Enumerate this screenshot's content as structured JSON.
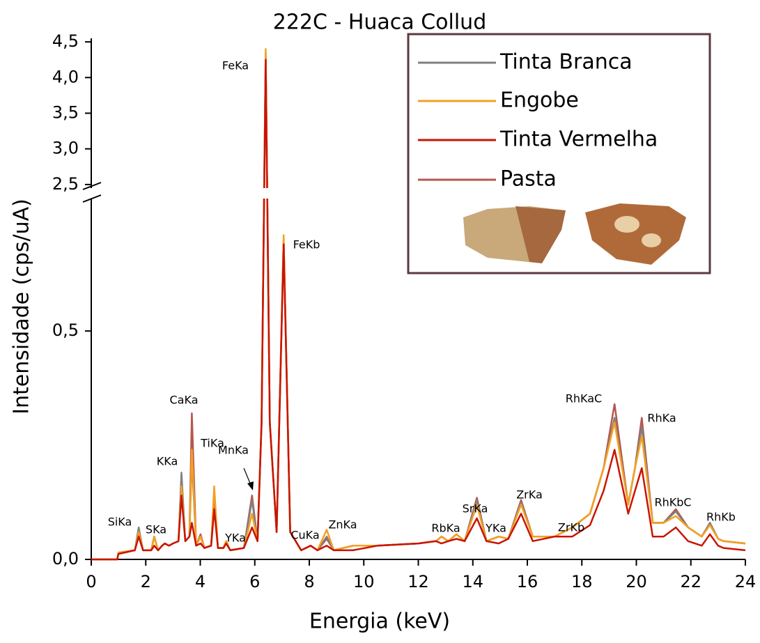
{
  "chart_data": {
    "type": "line",
    "title": "222C - Huaca Collud",
    "x_label": "Energia (keV)",
    "y_label": "Intensidade (cps/uA)",
    "xlim": [
      0,
      24
    ],
    "xticks": [
      0,
      2,
      4,
      6,
      8,
      10,
      12,
      14,
      16,
      18,
      20,
      22,
      24
    ],
    "ylim_segments": [
      [
        0,
        0.79
      ],
      [
        2.45,
        4.55
      ]
    ],
    "yticks": [
      {
        "value": 0,
        "label": "0,0"
      },
      {
        "value": 0.5,
        "label": "0,5"
      },
      {
        "value": 2.5,
        "label": "2,5"
      },
      {
        "value": 3.0,
        "label": "3,0"
      },
      {
        "value": 3.5,
        "label": "3,5"
      },
      {
        "value": 4.0,
        "label": "4,0"
      },
      {
        "value": 4.5,
        "label": "4,5"
      }
    ],
    "x": [
      0,
      0.95,
      1.0,
      1.6,
      1.74,
      1.9,
      2.2,
      2.31,
      2.45,
      2.6,
      2.7,
      2.85,
      3.0,
      3.2,
      3.31,
      3.45,
      3.6,
      3.69,
      3.85,
      4.01,
      4.15,
      4.4,
      4.51,
      4.65,
      4.85,
      4.95,
      5.1,
      5.6,
      5.9,
      6.1,
      6.25,
      6.4,
      6.55,
      6.8,
      7.06,
      7.3,
      7.7,
      8.05,
      8.3,
      8.64,
      8.9,
      9.6,
      10.5,
      12.0,
      12.65,
      12.85,
      13.1,
      13.4,
      13.7,
      14.15,
      14.5,
      14.95,
      15.3,
      15.77,
      16.2,
      17.0,
      17.65,
      18.3,
      18.8,
      19.2,
      19.7,
      19.95,
      20.2,
      20.6,
      21.0,
      21.45,
      21.9,
      22.4,
      22.7,
      23.0,
      23.2,
      24
    ],
    "series": [
      {
        "name": "Tinta Branca",
        "color": "#808080",
        "values": [
          0,
          0,
          0.015,
          0.02,
          0.07,
          0.02,
          0.02,
          0.05,
          0.02,
          0.03,
          0.035,
          0.03,
          0.035,
          0.04,
          0.19,
          0.04,
          0.05,
          0.22,
          0.03,
          0.05,
          0.025,
          0.03,
          0.14,
          0.025,
          0.025,
          0.04,
          0.02,
          0.025,
          0.13,
          0.04,
          0.3,
          4.35,
          0.3,
          0.06,
          0.7,
          0.06,
          0.02,
          0.03,
          0.02,
          0.05,
          0.02,
          0.03,
          0.03,
          0.035,
          0.04,
          0.05,
          0.04,
          0.055,
          0.04,
          0.13,
          0.04,
          0.05,
          0.045,
          0.125,
          0.05,
          0.05,
          0.07,
          0.1,
          0.2,
          0.31,
          0.12,
          0.2,
          0.29,
          0.08,
          0.08,
          0.105,
          0.07,
          0.05,
          0.08,
          0.045,
          0.04,
          0.035
        ]
      },
      {
        "name": "Engobe",
        "color": "#f5a020",
        "values": [
          0,
          0,
          0.015,
          0.02,
          0.06,
          0.02,
          0.02,
          0.05,
          0.02,
          0.03,
          0.035,
          0.03,
          0.035,
          0.04,
          0.16,
          0.04,
          0.05,
          0.24,
          0.03,
          0.05,
          0.025,
          0.03,
          0.16,
          0.025,
          0.025,
          0.04,
          0.02,
          0.025,
          0.1,
          0.04,
          0.3,
          4.4,
          0.3,
          0.06,
          0.71,
          0.06,
          0.02,
          0.03,
          0.02,
          0.065,
          0.02,
          0.03,
          0.03,
          0.035,
          0.04,
          0.05,
          0.04,
          0.055,
          0.04,
          0.12,
          0.04,
          0.05,
          0.045,
          0.12,
          0.05,
          0.05,
          0.07,
          0.1,
          0.2,
          0.3,
          0.12,
          0.2,
          0.27,
          0.08,
          0.08,
          0.095,
          0.07,
          0.05,
          0.075,
          0.045,
          0.04,
          0.035
        ]
      },
      {
        "name": "Tinta Vermelha",
        "color": "#c81400",
        "values": [
          0,
          0,
          0.012,
          0.02,
          0.05,
          0.02,
          0.02,
          0.03,
          0.02,
          0.03,
          0.035,
          0.03,
          0.035,
          0.04,
          0.14,
          0.04,
          0.05,
          0.08,
          0.03,
          0.035,
          0.025,
          0.03,
          0.11,
          0.025,
          0.025,
          0.035,
          0.02,
          0.025,
          0.07,
          0.04,
          0.3,
          4.25,
          0.3,
          0.06,
          0.69,
          0.06,
          0.02,
          0.03,
          0.02,
          0.03,
          0.02,
          0.02,
          0.03,
          0.035,
          0.04,
          0.035,
          0.04,
          0.045,
          0.04,
          0.09,
          0.04,
          0.035,
          0.045,
          0.1,
          0.04,
          0.05,
          0.05,
          0.075,
          0.15,
          0.24,
          0.1,
          0.15,
          0.2,
          0.05,
          0.05,
          0.07,
          0.04,
          0.03,
          0.055,
          0.03,
          0.025,
          0.02
        ]
      },
      {
        "name": "Pasta",
        "color": "#b5574f",
        "values": [
          0,
          0,
          0.015,
          0.02,
          0.065,
          0.02,
          0.02,
          0.05,
          0.02,
          0.03,
          0.035,
          0.03,
          0.035,
          0.04,
          0.18,
          0.04,
          0.05,
          0.32,
          0.03,
          0.055,
          0.025,
          0.03,
          0.14,
          0.025,
          0.025,
          0.04,
          0.02,
          0.025,
          0.14,
          0.04,
          0.3,
          4.3,
          0.3,
          0.06,
          0.7,
          0.06,
          0.02,
          0.03,
          0.02,
          0.045,
          0.02,
          0.03,
          0.03,
          0.035,
          0.04,
          0.05,
          0.04,
          0.055,
          0.04,
          0.135,
          0.04,
          0.05,
          0.045,
          0.13,
          0.05,
          0.05,
          0.07,
          0.1,
          0.2,
          0.34,
          0.12,
          0.2,
          0.31,
          0.08,
          0.08,
          0.11,
          0.07,
          0.05,
          0.08,
          0.045,
          0.04,
          0.035
        ]
      }
    ],
    "annotations": [
      "SiKa",
      "SKa",
      "KKa",
      "CaKa",
      "TiKa",
      "YKa",
      "MnKa",
      "FeKa",
      "FeKb",
      "CuKa",
      "ZnKa",
      "RbKa",
      "SrKa",
      "YKa",
      "ZrKa",
      "ZrKb",
      "RhKaC",
      "RhKa",
      "RhKbC",
      "RhKb"
    ]
  }
}
